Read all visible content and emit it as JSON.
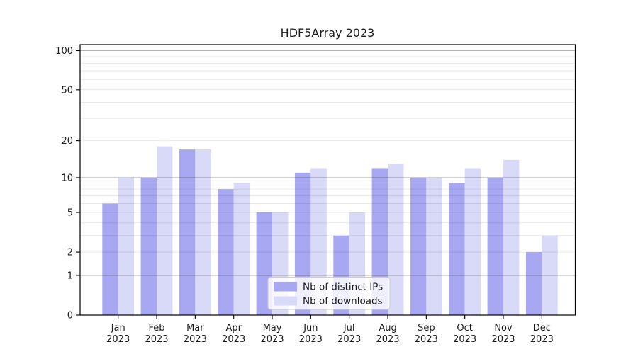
{
  "title": "HDF5Array 2023",
  "chart_data": {
    "type": "bar",
    "title": "HDF5Array 2023",
    "categories": [
      "Jan 2023",
      "Feb 2023",
      "Mar 2023",
      "Apr 2023",
      "May 2023",
      "Jun 2023",
      "Jul 2023",
      "Aug 2023",
      "Sep 2023",
      "Oct 2023",
      "Nov 2023",
      "Dec 2023"
    ],
    "series": [
      {
        "name": "Nb of distinct IPs",
        "color": "#a8a8f2",
        "values": [
          6,
          10,
          17,
          8,
          5,
          11,
          3,
          12,
          10,
          9,
          10,
          2
        ]
      },
      {
        "name": "Nb of downloads",
        "color": "#d9d9f8",
        "values": [
          10,
          18,
          17,
          9,
          5,
          12,
          5,
          13,
          10,
          12,
          14,
          3
        ]
      }
    ],
    "xlabel": "",
    "ylabel": "",
    "y_scale": "log10(value+1)",
    "y_tick_labels": [
      0,
      1,
      2,
      5,
      10,
      20,
      50,
      100
    ],
    "y_major_gridlines": [
      1,
      10,
      100
    ],
    "y_minor_gridlines": [
      2,
      3,
      4,
      5,
      6,
      7,
      8,
      9,
      20,
      30,
      40,
      50,
      60,
      70,
      80,
      90
    ],
    "ylim": [
      0,
      111
    ],
    "grid": "horizontal, drawn over bars",
    "legend_position": "lower center",
    "colors": {
      "major_grid": "rgba(0,0,0,0.30)",
      "minor_grid": "rgba(0,0,0,0.085)",
      "spine": "#000000",
      "legend_border": "#cccccc",
      "legend_background": "rgba(255,255,255,0.8)"
    }
  }
}
